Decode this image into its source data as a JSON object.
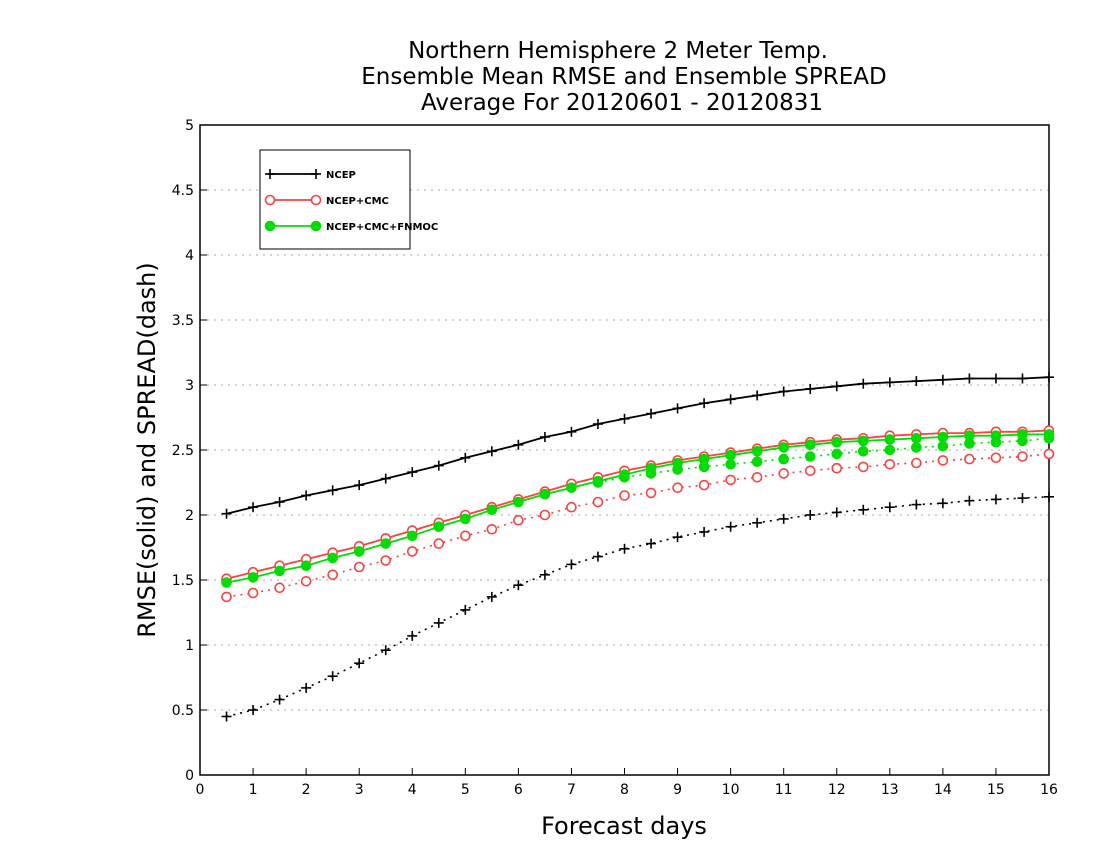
{
  "chart_data": {
    "type": "line",
    "title_lines": [
      "Northern Hemisphere 2 Meter Temp.",
      "Ensemble Mean RMSE and Ensemble SPREAD",
      "Average For 20120601 - 20120831"
    ],
    "xlabel": "Forecast days",
    "ylabel": "RMSE(solid) and SPREAD(dash)",
    "xlim": [
      0,
      16
    ],
    "ylim": [
      0,
      5
    ],
    "x_ticks": [
      "0",
      "1",
      "2",
      "3",
      "4",
      "5",
      "6",
      "7",
      "8",
      "9",
      "10",
      "11",
      "12",
      "13",
      "14",
      "15",
      "16"
    ],
    "y_ticks": [
      "0",
      "0.5",
      "1",
      "1.5",
      "2",
      "2.5",
      "3",
      "3.5",
      "4",
      "4.5",
      "5"
    ],
    "grid": "horizontal dotted",
    "legend_position": "top-left",
    "x": [
      0.5,
      1,
      1.5,
      2,
      2.5,
      3,
      3.5,
      4,
      4.5,
      5,
      5.5,
      6,
      6.5,
      7,
      7.5,
      8,
      8.5,
      9,
      9.5,
      10,
      10.5,
      11,
      11.5,
      12,
      12.5,
      13,
      13.5,
      14,
      14.5,
      15,
      15.5,
      16
    ],
    "series": [
      {
        "name": "NCEP",
        "color": "#000000",
        "marker": "plus",
        "rmse": [
          2.01,
          2.06,
          2.1,
          2.15,
          2.19,
          2.23,
          2.28,
          2.33,
          2.38,
          2.44,
          2.49,
          2.54,
          2.6,
          2.64,
          2.7,
          2.74,
          2.78,
          2.82,
          2.86,
          2.89,
          2.92,
          2.95,
          2.97,
          2.99,
          3.01,
          3.02,
          3.03,
          3.04,
          3.05,
          3.05,
          3.05,
          3.06
        ],
        "spread": [
          0.45,
          0.5,
          0.58,
          0.67,
          0.76,
          0.86,
          0.96,
          1.07,
          1.17,
          1.27,
          1.37,
          1.46,
          1.54,
          1.62,
          1.68,
          1.74,
          1.78,
          1.83,
          1.87,
          1.91,
          1.94,
          1.97,
          2.0,
          2.02,
          2.04,
          2.06,
          2.08,
          2.09,
          2.11,
          2.12,
          2.13,
          2.14
        ]
      },
      {
        "name": "NCEP+CMC",
        "color": "#ff4040",
        "marker": "open-circle",
        "rmse": [
          1.51,
          1.56,
          1.61,
          1.66,
          1.71,
          1.76,
          1.82,
          1.88,
          1.94,
          2.0,
          2.06,
          2.12,
          2.18,
          2.24,
          2.29,
          2.34,
          2.38,
          2.42,
          2.45,
          2.48,
          2.51,
          2.54,
          2.56,
          2.58,
          2.59,
          2.61,
          2.62,
          2.63,
          2.63,
          2.64,
          2.64,
          2.65
        ],
        "spread": [
          1.37,
          1.4,
          1.44,
          1.49,
          1.54,
          1.6,
          1.65,
          1.72,
          1.78,
          1.84,
          1.89,
          1.96,
          2.0,
          2.06,
          2.1,
          2.15,
          2.17,
          2.21,
          2.23,
          2.27,
          2.29,
          2.32,
          2.34,
          2.36,
          2.37,
          2.39,
          2.4,
          2.42,
          2.43,
          2.44,
          2.45,
          2.47
        ]
      },
      {
        "name": "NCEP+CMC+FNMOC",
        "color": "#00dd00",
        "marker": "filled-circle",
        "rmse": [
          1.48,
          1.52,
          1.57,
          1.61,
          1.67,
          1.72,
          1.78,
          1.84,
          1.91,
          1.97,
          2.04,
          2.1,
          2.16,
          2.21,
          2.26,
          2.31,
          2.36,
          2.4,
          2.43,
          2.46,
          2.49,
          2.52,
          2.54,
          2.56,
          2.57,
          2.58,
          2.59,
          2.6,
          2.61,
          2.61,
          2.62,
          2.62
        ]
      }
    ],
    "spread_extra": {
      "name": "NCEP+CMC+FNMOC",
      "values": [
        null,
        null,
        null,
        null,
        null,
        null,
        null,
        null,
        null,
        null,
        null,
        null,
        null,
        null,
        2.25,
        2.29,
        2.32,
        2.35,
        2.37,
        2.39,
        2.41,
        2.43,
        2.45,
        2.47,
        2.49,
        2.5,
        2.52,
        2.53,
        2.55,
        2.56,
        2.57,
        2.59
      ]
    }
  }
}
